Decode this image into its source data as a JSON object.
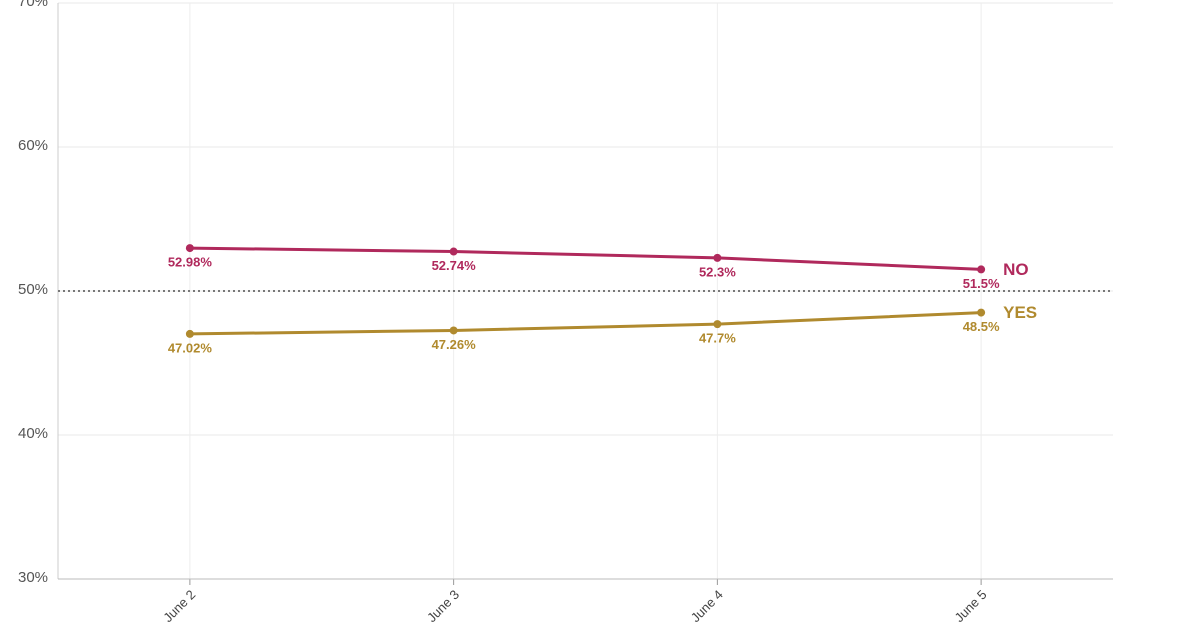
{
  "chart_data": {
    "type": "line",
    "categories": [
      "June 2",
      "June 3",
      "June 4",
      "June 5"
    ],
    "series": [
      {
        "name": "NO",
        "color": "#b0295c",
        "values": [
          52.98,
          52.74,
          52.3,
          51.5
        ],
        "value_labels": [
          "52.98%",
          "52.74%",
          "52.3%",
          "51.5%"
        ]
      },
      {
        "name": "YES",
        "color": "#b08a2e",
        "values": [
          47.02,
          47.26,
          47.7,
          48.5
        ],
        "value_labels": [
          "47.02%",
          "47.26%",
          "47.7%",
          "48.5%"
        ]
      }
    ],
    "ylim": [
      30,
      70
    ],
    "yticks": [
      {
        "value": 30,
        "label": "30%"
      },
      {
        "value": 40,
        "label": "40%"
      },
      {
        "value": 50,
        "label": "50%"
      },
      {
        "value": 60,
        "label": "60%"
      },
      {
        "value": 70,
        "label": "70%"
      }
    ],
    "reference_line": 50,
    "grid": true
  }
}
